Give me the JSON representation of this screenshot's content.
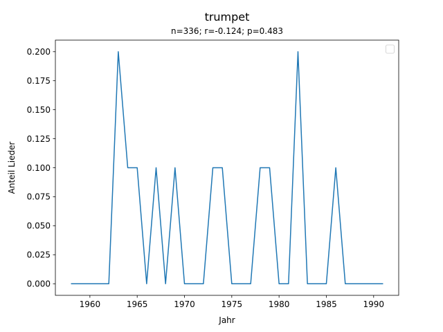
{
  "chart_data": {
    "type": "line",
    "title": "trumpet",
    "subtitle": "n=336; r=-0.124; p=0.483",
    "xlabel": "Jahr",
    "ylabel": "Anteil Lieder",
    "xlim": [
      1956.35,
      1992.65
    ],
    "ylim": [
      -0.01,
      0.21
    ],
    "xticks": [
      1960,
      1965,
      1970,
      1975,
      1980,
      1985,
      1990
    ],
    "yticks": [
      0.0,
      0.025,
      0.05,
      0.075,
      0.1,
      0.125,
      0.15,
      0.175,
      0.2
    ],
    "xtick_labels": [
      "1960",
      "1965",
      "1970",
      "1975",
      "1980",
      "1985",
      "1990"
    ],
    "ytick_labels": [
      "0.000",
      "0.025",
      "0.050",
      "0.075",
      "0.100",
      "0.125",
      "0.150",
      "0.175",
      "0.200"
    ],
    "grid": false,
    "legend": "top-right",
    "line_color": "#1f77b4",
    "series": [
      {
        "x": [
          1958,
          1959,
          1960,
          1961,
          1962,
          1963,
          1964,
          1965,
          1966,
          1967,
          1968,
          1969,
          1970,
          1971,
          1972,
          1973,
          1974,
          1975,
          1976,
          1977,
          1978,
          1979,
          1980,
          1981,
          1982,
          1983,
          1984,
          1985,
          1986,
          1987,
          1988,
          1989,
          1990,
          1991
        ],
        "values": [
          0,
          0,
          0,
          0,
          0,
          0.2,
          0.1,
          0.1,
          0,
          0.1,
          0,
          0.1,
          0,
          0,
          0,
          0.1,
          0.1,
          0,
          0,
          0,
          0.1,
          0.1,
          0,
          0,
          0.2,
          0,
          0,
          0,
          0.1,
          0,
          0,
          0,
          0,
          0
        ]
      }
    ]
  }
}
